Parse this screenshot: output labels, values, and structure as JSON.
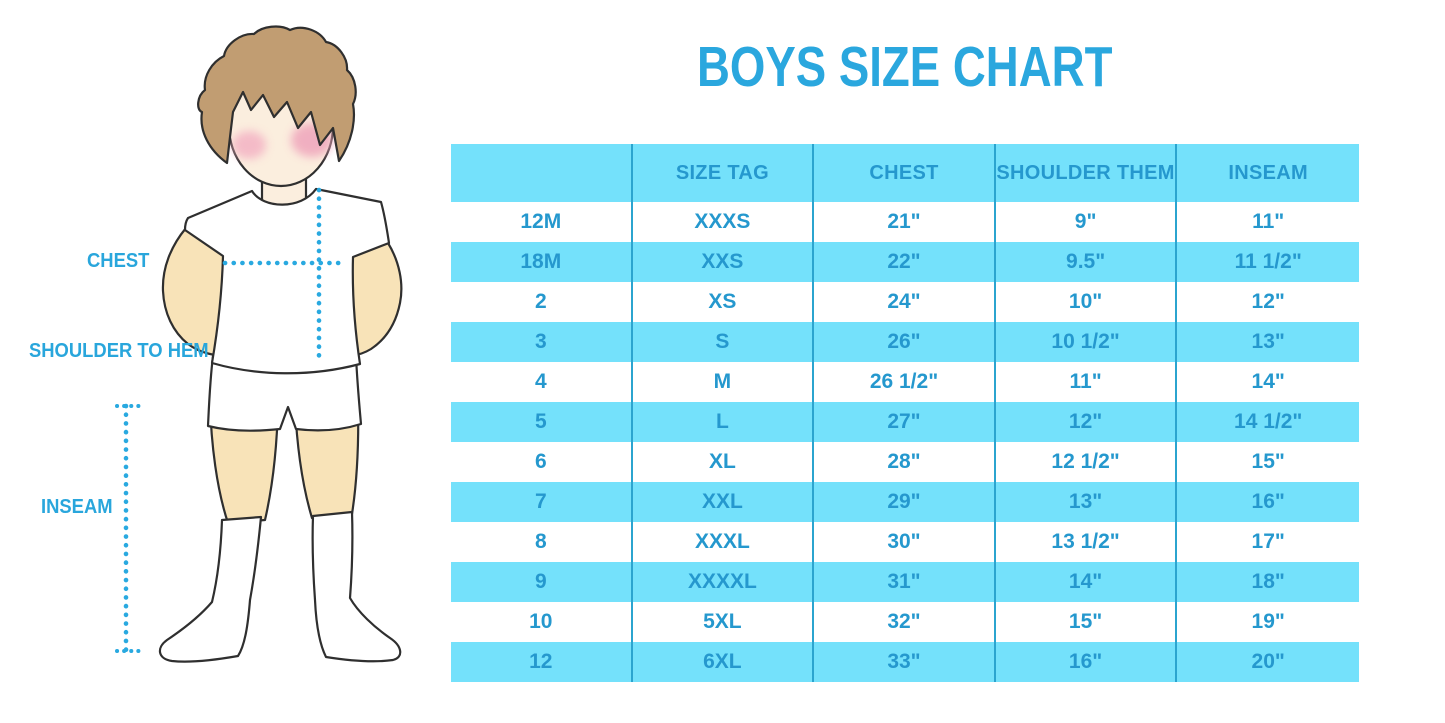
{
  "title": "BOYS SIZE CHART",
  "figure": {
    "labels": {
      "chest": "CHEST",
      "shoulder_to_hem": "SHOULDER TO HEM",
      "inseam": "INSEAM"
    }
  },
  "size_table": {
    "columns": [
      "",
      "SIZE TAG",
      "CHEST",
      "SHOULDER THEM",
      "INSEAM"
    ],
    "rows": [
      [
        "12M",
        "XXXS",
        "21\"",
        "9\"",
        "11\""
      ],
      [
        "18M",
        "XXS",
        "22\"",
        "9.5\"",
        "11 1/2\""
      ],
      [
        "2",
        "XS",
        "24\"",
        "10\"",
        "12\""
      ],
      [
        "3",
        "S",
        "26\"",
        "10 1/2\"",
        "13\""
      ],
      [
        "4",
        "M",
        "26 1/2\"",
        "11\"",
        "14\""
      ],
      [
        "5",
        "L",
        "27\"",
        "12\"",
        "14 1/2\""
      ],
      [
        "6",
        "XL",
        "28\"",
        "12 1/2\"",
        "15\""
      ],
      [
        "7",
        "XXL",
        "29\"",
        "13\"",
        "16\""
      ],
      [
        "8",
        "XXXL",
        "30\"",
        "13 1/2\"",
        "17\""
      ],
      [
        "9",
        "XXXXL",
        "31\"",
        "14\"",
        "18\""
      ],
      [
        "10",
        "5XL",
        "32\"",
        "15\"",
        "19\""
      ],
      [
        "12",
        "6XL",
        "33\"",
        "16\"",
        "20\""
      ]
    ]
  },
  "colors": {
    "accent_blue": "#2AA7DE",
    "table_text_blue": "#2598CE",
    "row_cyan": "#74E1FB",
    "divider_blue": "#2BA4CF",
    "dotted_line_cyan": "#29A9E0",
    "hair_brown": "#C19D72",
    "skin_tone": "#F8E3B8"
  }
}
